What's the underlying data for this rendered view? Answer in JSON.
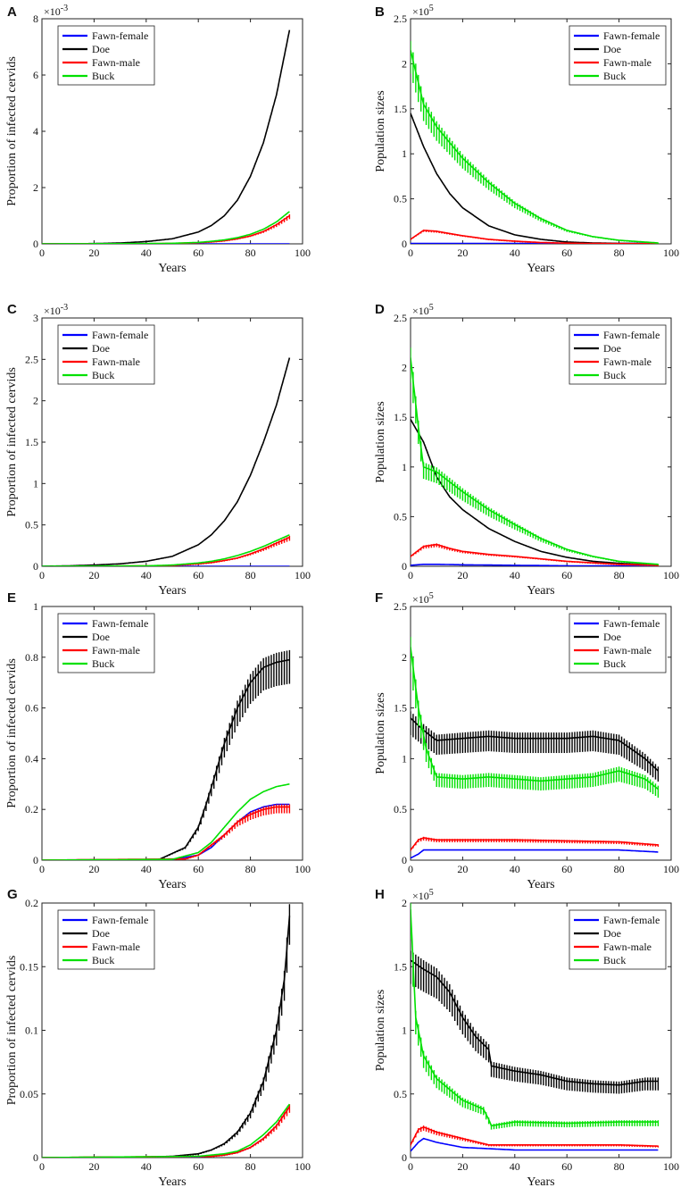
{
  "chart_data": [
    {
      "panel": "A",
      "type": "line",
      "xlabel": "Years",
      "ylabel": "Proportion of infected cervids",
      "exponent_base": "×10",
      "exponent_power": "-3",
      "xlim": [
        0,
        100
      ],
      "ylim": [
        0,
        8
      ],
      "xticks": [
        0,
        20,
        40,
        60,
        80,
        100
      ],
      "yticks": [
        0,
        2,
        4,
        6,
        8
      ],
      "legend_position": "top-left",
      "series": [
        {
          "name": "Fawn-female",
          "color": "#0000ff",
          "x": [
            0,
            95
          ],
          "y": [
            0,
            0
          ]
        },
        {
          "name": "Doe",
          "color": "#000000",
          "x": [
            0,
            10,
            20,
            30,
            40,
            50,
            60,
            65,
            70,
            75,
            80,
            85,
            90,
            95
          ],
          "y": [
            0,
            0,
            0.01,
            0.03,
            0.08,
            0.18,
            0.42,
            0.65,
            1.0,
            1.55,
            2.4,
            3.6,
            5.3,
            7.6
          ]
        },
        {
          "name": "Fawn-male",
          "color": "#ff0000",
          "x": [
            0,
            40,
            50,
            60,
            65,
            70,
            75,
            80,
            85,
            90,
            95
          ],
          "y": [
            0,
            0.005,
            0.015,
            0.04,
            0.07,
            0.11,
            0.18,
            0.28,
            0.44,
            0.68,
            1.0
          ],
          "sawtooth": true
        },
        {
          "name": "Buck",
          "color": "#00e000",
          "x": [
            0,
            40,
            50,
            60,
            65,
            70,
            75,
            80,
            85,
            90,
            95
          ],
          "y": [
            0,
            0.01,
            0.02,
            0.05,
            0.09,
            0.14,
            0.22,
            0.34,
            0.52,
            0.78,
            1.15
          ]
        }
      ]
    },
    {
      "panel": "B",
      "type": "line",
      "xlabel": "Years",
      "ylabel": "Population sizes",
      "exponent_base": "×10",
      "exponent_power": "5",
      "xlim": [
        0,
        100
      ],
      "ylim": [
        0,
        2.5
      ],
      "xticks": [
        0,
        20,
        40,
        60,
        80,
        100
      ],
      "yticks": [
        0,
        0.5,
        1,
        1.5,
        2,
        2.5
      ],
      "legend_position": "top-right",
      "series": [
        {
          "name": "Fawn-female",
          "color": "#0000ff",
          "x": [
            0,
            95
          ],
          "y": [
            0.005,
            0.005
          ]
        },
        {
          "name": "Doe",
          "color": "#000000",
          "x": [
            0,
            5,
            10,
            15,
            20,
            30,
            40,
            50,
            60,
            70,
            80,
            95
          ],
          "y": [
            1.45,
            1.08,
            0.78,
            0.56,
            0.4,
            0.2,
            0.1,
            0.05,
            0.02,
            0.01,
            0.005,
            0.002
          ]
        },
        {
          "name": "Fawn-male",
          "color": "#ff0000",
          "x": [
            0,
            5,
            10,
            20,
            30,
            40,
            50,
            60,
            70,
            95
          ],
          "y": [
            0.05,
            0.15,
            0.14,
            0.09,
            0.05,
            0.03,
            0.015,
            0.008,
            0.004,
            0.001
          ],
          "sawtooth": true
        },
        {
          "name": "Buck",
          "color": "#00e000",
          "x": [
            0,
            5,
            10,
            20,
            30,
            40,
            50,
            60,
            70,
            80,
            95
          ],
          "y": [
            2.15,
            1.55,
            1.3,
            0.95,
            0.68,
            0.45,
            0.28,
            0.15,
            0.08,
            0.04,
            0.01
          ],
          "sawtooth": true
        }
      ]
    },
    {
      "panel": "C",
      "type": "line",
      "xlabel": "Years",
      "ylabel": "Proportion of infected cervids",
      "exponent_base": "×10",
      "exponent_power": "-3",
      "xlim": [
        0,
        100
      ],
      "ylim": [
        0,
        3
      ],
      "xticks": [
        0,
        20,
        40,
        60,
        80,
        100
      ],
      "yticks": [
        0,
        0.5,
        1,
        1.5,
        2,
        2.5,
        3
      ],
      "legend_position": "top-left",
      "series": [
        {
          "name": "Fawn-female",
          "color": "#0000ff",
          "x": [
            0,
            95
          ],
          "y": [
            0,
            0
          ]
        },
        {
          "name": "Doe",
          "color": "#000000",
          "x": [
            0,
            10,
            20,
            30,
            40,
            50,
            60,
            65,
            70,
            75,
            80,
            85,
            90,
            95
          ],
          "y": [
            0,
            0.005,
            0.015,
            0.03,
            0.06,
            0.12,
            0.26,
            0.38,
            0.55,
            0.78,
            1.1,
            1.5,
            1.95,
            2.52
          ]
        },
        {
          "name": "Fawn-male",
          "color": "#ff0000",
          "x": [
            15,
            40,
            50,
            60,
            65,
            70,
            75,
            80,
            85,
            90,
            95
          ],
          "y": [
            0,
            0.005,
            0.01,
            0.03,
            0.045,
            0.07,
            0.1,
            0.15,
            0.21,
            0.28,
            0.35
          ],
          "sawtooth": true
        },
        {
          "name": "Buck",
          "color": "#00e000",
          "x": [
            0,
            40,
            50,
            60,
            65,
            70,
            75,
            80,
            85,
            90,
            95
          ],
          "y": [
            0,
            0.005,
            0.015,
            0.04,
            0.06,
            0.09,
            0.13,
            0.18,
            0.24,
            0.31,
            0.38
          ]
        }
      ]
    },
    {
      "panel": "D",
      "type": "line",
      "xlabel": "Years",
      "ylabel": "Population sizes",
      "exponent_base": "×10",
      "exponent_power": "5",
      "xlim": [
        0,
        100
      ],
      "ylim": [
        0,
        2.5
      ],
      "xticks": [
        0,
        20,
        40,
        60,
        80,
        100
      ],
      "yticks": [
        0,
        0.5,
        1,
        1.5,
        2,
        2.5
      ],
      "legend_position": "top-right",
      "series": [
        {
          "name": "Fawn-female",
          "color": "#0000ff",
          "x": [
            0,
            5,
            10,
            20,
            40,
            60,
            95
          ],
          "y": [
            0.01,
            0.02,
            0.02,
            0.015,
            0.01,
            0.005,
            0.002
          ]
        },
        {
          "name": "Doe",
          "color": "#000000",
          "x": [
            0,
            5,
            10,
            15,
            20,
            30,
            40,
            50,
            60,
            70,
            80,
            95
          ],
          "y": [
            1.48,
            1.25,
            0.9,
            0.7,
            0.57,
            0.38,
            0.25,
            0.15,
            0.09,
            0.05,
            0.03,
            0.01
          ]
        },
        {
          "name": "Fawn-male",
          "color": "#ff0000",
          "x": [
            0,
            5,
            10,
            15,
            20,
            30,
            40,
            60,
            80,
            95
          ],
          "y": [
            0.1,
            0.2,
            0.22,
            0.18,
            0.15,
            0.12,
            0.1,
            0.05,
            0.02,
            0.01
          ],
          "sawtooth": true
        },
        {
          "name": "Buck",
          "color": "#00e000",
          "x": [
            0,
            3,
            5,
            10,
            20,
            30,
            40,
            50,
            60,
            70,
            80,
            95
          ],
          "y": [
            2.1,
            1.4,
            1.0,
            0.95,
            0.75,
            0.57,
            0.42,
            0.28,
            0.17,
            0.1,
            0.05,
            0.02
          ],
          "sawtooth": true
        }
      ]
    },
    {
      "panel": "E",
      "type": "line",
      "xlabel": "Years",
      "ylabel": "Proportion of infected cervids",
      "exponent_base": "",
      "exponent_power": "",
      "xlim": [
        0,
        100
      ],
      "ylim": [
        0,
        1
      ],
      "xticks": [
        0,
        20,
        40,
        60,
        80,
        100
      ],
      "yticks": [
        0,
        0.2,
        0.4,
        0.6,
        0.8,
        1
      ],
      "legend_position": "top-left",
      "series": [
        {
          "name": "Fawn-female",
          "color": "#0000ff",
          "x": [
            0,
            50,
            60,
            65,
            70,
            75,
            80,
            85,
            90,
            95
          ],
          "y": [
            0,
            0.002,
            0.02,
            0.05,
            0.1,
            0.15,
            0.19,
            0.21,
            0.22,
            0.22
          ]
        },
        {
          "name": "Doe",
          "color": "#000000",
          "x": [
            0,
            45,
            55,
            60,
            63,
            66,
            70,
            75,
            80,
            85,
            90,
            95
          ],
          "y": [
            0,
            0.003,
            0.05,
            0.13,
            0.22,
            0.32,
            0.46,
            0.6,
            0.7,
            0.76,
            0.78,
            0.79
          ],
          "sawtooth": true
        },
        {
          "name": "Fawn-male",
          "color": "#ff0000",
          "x": [
            0,
            55,
            60,
            65,
            70,
            75,
            80,
            85,
            90,
            95
          ],
          "y": [
            0,
            0.005,
            0.02,
            0.06,
            0.1,
            0.15,
            0.18,
            0.2,
            0.21,
            0.21
          ],
          "sawtooth": true
        },
        {
          "name": "Buck",
          "color": "#00e000",
          "x": [
            0,
            50,
            60,
            65,
            70,
            75,
            80,
            85,
            90,
            95
          ],
          "y": [
            0,
            0.003,
            0.03,
            0.07,
            0.13,
            0.19,
            0.24,
            0.27,
            0.29,
            0.3
          ]
        }
      ]
    },
    {
      "panel": "F",
      "type": "line",
      "xlabel": "Years",
      "ylabel": "Population sizes",
      "exponent_base": "×10",
      "exponent_power": "5",
      "xlim": [
        0,
        100
      ],
      "ylim": [
        0,
        2.5
      ],
      "xticks": [
        0,
        20,
        40,
        60,
        80,
        100
      ],
      "yticks": [
        0,
        0.5,
        1,
        1.5,
        2,
        2.5
      ],
      "legend_position": "top-right",
      "series": [
        {
          "name": "Fawn-female",
          "color": "#0000ff",
          "x": [
            0,
            3,
            5,
            10,
            20,
            40,
            60,
            80,
            95
          ],
          "y": [
            0.02,
            0.06,
            0.1,
            0.1,
            0.1,
            0.1,
            0.1,
            0.1,
            0.08
          ]
        },
        {
          "name": "Doe",
          "color": "#000000",
          "x": [
            0,
            5,
            10,
            20,
            30,
            40,
            50,
            60,
            70,
            80,
            90,
            95
          ],
          "y": [
            1.4,
            1.28,
            1.18,
            1.2,
            1.22,
            1.2,
            1.2,
            1.2,
            1.22,
            1.18,
            1.0,
            0.88
          ],
          "sawtooth": true
        },
        {
          "name": "Fawn-male",
          "color": "#ff0000",
          "x": [
            0,
            3,
            5,
            10,
            20,
            40,
            60,
            80,
            95
          ],
          "y": [
            0.1,
            0.2,
            0.22,
            0.2,
            0.2,
            0.2,
            0.19,
            0.18,
            0.15
          ],
          "sawtooth": true
        },
        {
          "name": "Buck",
          "color": "#00e000",
          "x": [
            0,
            3,
            6,
            10,
            20,
            30,
            40,
            50,
            60,
            70,
            80,
            90,
            95
          ],
          "y": [
            2.1,
            1.5,
            1.1,
            0.82,
            0.8,
            0.82,
            0.8,
            0.78,
            0.8,
            0.82,
            0.88,
            0.8,
            0.7
          ],
          "sawtooth": true
        }
      ]
    },
    {
      "panel": "G",
      "type": "line",
      "xlabel": "Years",
      "ylabel": "Proportion of infected cervids",
      "exponent_base": "",
      "exponent_power": "",
      "xlim": [
        0,
        100
      ],
      "ylim": [
        0,
        0.2
      ],
      "xticks": [
        0,
        20,
        40,
        60,
        80,
        100
      ],
      "yticks": [
        0,
        0.05,
        0.1,
        0.15,
        0.2
      ],
      "legend_position": "top-left",
      "series": [
        {
          "name": "Fawn-female",
          "color": "#0000ff",
          "x": [
            0,
            60,
            70,
            75,
            80,
            85,
            90,
            95
          ],
          "y": [
            0,
            0.0005,
            0.002,
            0.004,
            0.008,
            0.015,
            0.025,
            0.04
          ]
        },
        {
          "name": "Doe",
          "color": "#000000",
          "x": [
            0,
            40,
            50,
            60,
            65,
            70,
            75,
            80,
            85,
            90,
            93,
            95
          ],
          "y": [
            0,
            0.0005,
            0.001,
            0.003,
            0.006,
            0.011,
            0.02,
            0.035,
            0.06,
            0.1,
            0.14,
            0.19
          ],
          "sawtooth": true
        },
        {
          "name": "Fawn-male",
          "color": "#ff0000",
          "x": [
            0,
            65,
            70,
            75,
            80,
            85,
            90,
            95
          ],
          "y": [
            0,
            0.001,
            0.002,
            0.004,
            0.008,
            0.015,
            0.025,
            0.04
          ],
          "sawtooth": true
        },
        {
          "name": "Buck",
          "color": "#00e000",
          "x": [
            0,
            60,
            70,
            75,
            80,
            85,
            90,
            95
          ],
          "y": [
            0,
            0.001,
            0.003,
            0.005,
            0.01,
            0.018,
            0.028,
            0.042
          ]
        }
      ]
    },
    {
      "panel": "H",
      "type": "line",
      "xlabel": "Years",
      "ylabel": "Population sizes",
      "exponent_base": "×10",
      "exponent_power": "5",
      "xlim": [
        0,
        100
      ],
      "ylim": [
        0,
        2
      ],
      "xticks": [
        0,
        20,
        40,
        60,
        80,
        100
      ],
      "yticks": [
        0,
        0.5,
        1,
        1.5,
        2
      ],
      "legend_position": "top-right",
      "series": [
        {
          "name": "Fawn-female",
          "color": "#0000ff",
          "x": [
            0,
            3,
            5,
            10,
            20,
            30,
            40,
            60,
            80,
            95
          ],
          "y": [
            0.05,
            0.12,
            0.15,
            0.12,
            0.08,
            0.07,
            0.06,
            0.06,
            0.06,
            0.06
          ]
        },
        {
          "name": "Doe",
          "color": "#000000",
          "x": [
            0,
            5,
            10,
            15,
            20,
            25,
            30,
            31,
            40,
            50,
            60,
            70,
            80,
            90,
            95
          ],
          "y": [
            1.55,
            1.48,
            1.42,
            1.3,
            1.1,
            0.95,
            0.85,
            0.72,
            0.68,
            0.65,
            0.6,
            0.58,
            0.57,
            0.6,
            0.6
          ],
          "sawtooth": true
        },
        {
          "name": "Fawn-male",
          "color": "#ff0000",
          "x": [
            0,
            3,
            5,
            10,
            20,
            30,
            40,
            60,
            80,
            95
          ],
          "y": [
            0.1,
            0.22,
            0.24,
            0.2,
            0.15,
            0.1,
            0.1,
            0.1,
            0.1,
            0.09
          ],
          "sawtooth": true
        },
        {
          "name": "Buck",
          "color": "#00e000",
          "x": [
            0,
            2,
            5,
            10,
            20,
            28,
            30,
            31,
            40,
            60,
            80,
            95
          ],
          "y": [
            1.95,
            1.1,
            0.8,
            0.62,
            0.45,
            0.38,
            0.3,
            0.25,
            0.28,
            0.27,
            0.28,
            0.28
          ],
          "sawtooth": true
        }
      ]
    }
  ]
}
